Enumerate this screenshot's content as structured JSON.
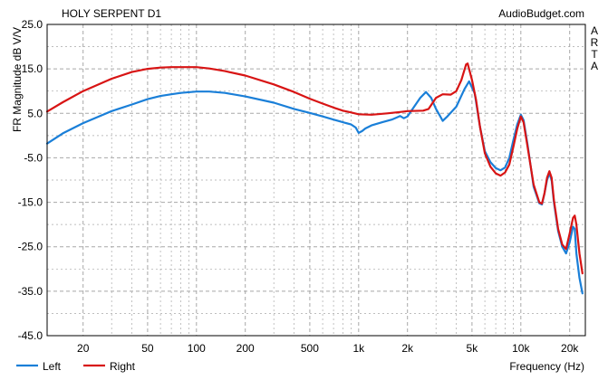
{
  "chart_data": {
    "type": "line",
    "title": "HOLY SERPENT D1",
    "watermark": "AudioBudget.com",
    "side_label": "ARTA",
    "xlabel": "Frequency (Hz)",
    "ylabel": "FR Magnitude dB V/V",
    "xscale": "log",
    "xlim": [
      12,
      25000
    ],
    "ylim": [
      -45,
      25
    ],
    "x_ticks": [
      20,
      50,
      100,
      200,
      500,
      1000,
      2000,
      5000,
      10000,
      20000
    ],
    "x_tick_labels": [
      "20",
      "50",
      "100",
      "200",
      "500",
      "1k",
      "2k",
      "5k",
      "10k",
      "20k"
    ],
    "y_ticks": [
      25,
      15,
      5,
      -5,
      -15,
      -25,
      -35,
      -45
    ],
    "y_tick_labels": [
      "25.0",
      "15.0",
      "5.0",
      "-5.0",
      "-15.0",
      "-25.0",
      "-35.0",
      "-45.0"
    ],
    "grid": true,
    "legend_position": "bottom-left",
    "colors": {
      "Left": "#1a7fd8",
      "Right": "#d81414",
      "grid": "#a8a8a8",
      "frame": "#000000"
    },
    "series": [
      {
        "name": "Left",
        "points": [
          [
            12,
            -1.8
          ],
          [
            15,
            0.5
          ],
          [
            20,
            2.8
          ],
          [
            30,
            5.5
          ],
          [
            40,
            7.0
          ],
          [
            50,
            8.2
          ],
          [
            60,
            8.9
          ],
          [
            70,
            9.3
          ],
          [
            80,
            9.6
          ],
          [
            100,
            9.9
          ],
          [
            120,
            9.9
          ],
          [
            150,
            9.6
          ],
          [
            200,
            8.8
          ],
          [
            300,
            7.4
          ],
          [
            400,
            6.0
          ],
          [
            500,
            5.1
          ],
          [
            600,
            4.3
          ],
          [
            700,
            3.6
          ],
          [
            800,
            3.0
          ],
          [
            900,
            2.5
          ],
          [
            960,
            1.8
          ],
          [
            1000,
            0.6
          ],
          [
            1050,
            1.0
          ],
          [
            1100,
            1.6
          ],
          [
            1200,
            2.3
          ],
          [
            1400,
            3.0
          ],
          [
            1600,
            3.6
          ],
          [
            1700,
            4.0
          ],
          [
            1800,
            4.4
          ],
          [
            1900,
            3.9
          ],
          [
            2000,
            4.3
          ],
          [
            2200,
            6.5
          ],
          [
            2400,
            8.5
          ],
          [
            2600,
            9.8
          ],
          [
            2800,
            8.5
          ],
          [
            3000,
            6.0
          ],
          [
            3200,
            4.2
          ],
          [
            3300,
            3.3
          ],
          [
            3500,
            4.2
          ],
          [
            4000,
            6.5
          ],
          [
            4500,
            10.5
          ],
          [
            4800,
            12.2
          ],
          [
            5200,
            9.5
          ],
          [
            5600,
            2.0
          ],
          [
            6000,
            -3.5
          ],
          [
            6500,
            -6.0
          ],
          [
            7000,
            -7.3
          ],
          [
            7500,
            -7.8
          ],
          [
            8000,
            -7.2
          ],
          [
            8500,
            -5.0
          ],
          [
            9000,
            -1.0
          ],
          [
            9500,
            2.5
          ],
          [
            10000,
            4.7
          ],
          [
            10400,
            3.5
          ],
          [
            11000,
            -2.0
          ],
          [
            12000,
            -11.5
          ],
          [
            13000,
            -15.2
          ],
          [
            13500,
            -15.5
          ],
          [
            14000,
            -13.0
          ],
          [
            14500,
            -10.0
          ],
          [
            15000,
            -8.5
          ],
          [
            15500,
            -10.0
          ],
          [
            16000,
            -15.0
          ],
          [
            17000,
            -21.5
          ],
          [
            18000,
            -25.0
          ],
          [
            19000,
            -26.5
          ],
          [
            20000,
            -24.0
          ],
          [
            21000,
            -20.5
          ],
          [
            21500,
            -21.0
          ],
          [
            22000,
            -26.5
          ],
          [
            23000,
            -32.0
          ],
          [
            24000,
            -35.5
          ]
        ]
      },
      {
        "name": "Right",
        "points": [
          [
            12,
            5.4
          ],
          [
            15,
            7.5
          ],
          [
            20,
            10.0
          ],
          [
            30,
            12.8
          ],
          [
            40,
            14.3
          ],
          [
            50,
            15.0
          ],
          [
            60,
            15.3
          ],
          [
            70,
            15.4
          ],
          [
            80,
            15.4
          ],
          [
            100,
            15.4
          ],
          [
            120,
            15.1
          ],
          [
            150,
            14.5
          ],
          [
            200,
            13.5
          ],
          [
            300,
            11.5
          ],
          [
            400,
            9.8
          ],
          [
            500,
            8.3
          ],
          [
            600,
            7.2
          ],
          [
            700,
            6.3
          ],
          [
            800,
            5.6
          ],
          [
            900,
            5.2
          ],
          [
            1000,
            4.8
          ],
          [
            1200,
            4.7
          ],
          [
            1500,
            5.0
          ],
          [
            1800,
            5.3
          ],
          [
            2000,
            5.5
          ],
          [
            2500,
            5.6
          ],
          [
            2700,
            6.0
          ],
          [
            3000,
            8.5
          ],
          [
            3300,
            9.3
          ],
          [
            3700,
            9.2
          ],
          [
            4000,
            10.0
          ],
          [
            4300,
            12.5
          ],
          [
            4600,
            16.0
          ],
          [
            4700,
            16.2
          ],
          [
            5000,
            12.5
          ],
          [
            5300,
            8.0
          ],
          [
            5600,
            2.0
          ],
          [
            6000,
            -4.0
          ],
          [
            6500,
            -7.0
          ],
          [
            7000,
            -8.5
          ],
          [
            7500,
            -9.0
          ],
          [
            8000,
            -8.3
          ],
          [
            8500,
            -6.5
          ],
          [
            9000,
            -2.5
          ],
          [
            9500,
            1.5
          ],
          [
            10000,
            4.3
          ],
          [
            10400,
            3.0
          ],
          [
            11000,
            -2.5
          ],
          [
            12000,
            -11.0
          ],
          [
            13000,
            -15.0
          ],
          [
            13500,
            -15.3
          ],
          [
            14000,
            -13.0
          ],
          [
            14500,
            -9.5
          ],
          [
            15000,
            -8.0
          ],
          [
            15500,
            -9.5
          ],
          [
            16000,
            -14.5
          ],
          [
            17000,
            -21.0
          ],
          [
            18000,
            -24.5
          ],
          [
            19000,
            -25.5
          ],
          [
            20000,
            -22.0
          ],
          [
            21000,
            -18.5
          ],
          [
            21500,
            -18.0
          ],
          [
            22000,
            -20.0
          ],
          [
            23000,
            -26.5
          ],
          [
            24000,
            -31.0
          ]
        ]
      }
    ]
  }
}
